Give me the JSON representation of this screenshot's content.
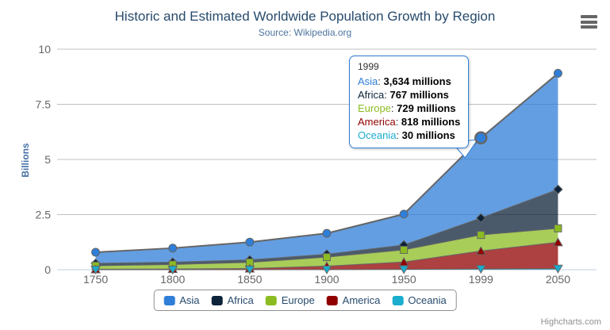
{
  "header": {
    "title": "Historic and Estimated Worldwide Population Growth by Region",
    "subtitle": "Source: Wikipedia.org"
  },
  "chart_data": {
    "type": "area",
    "stacking": "normal",
    "title": "Historic and Estimated Worldwide Population Growth by Region",
    "subtitle": "Source: Wikipedia.org",
    "categories": [
      "1750",
      "1800",
      "1850",
      "1900",
      "1950",
      "1999",
      "2050"
    ],
    "series": [
      {
        "name": "Asia",
        "color": "#2f7ed8",
        "marker": "circle",
        "values": [
          502,
          635,
          809,
          947,
          1402,
          3634,
          5268
        ]
      },
      {
        "name": "Africa",
        "color": "#0d233a",
        "marker": "diamond",
        "values": [
          106,
          107,
          111,
          133,
          221,
          767,
          1766
        ]
      },
      {
        "name": "Europe",
        "color": "#8bbc21",
        "marker": "square",
        "values": [
          163,
          203,
          276,
          408,
          547,
          729,
          628
        ]
      },
      {
        "name": "America",
        "color": "#910000",
        "marker": "triangle",
        "values": [
          18,
          31,
          54,
          156,
          339,
          818,
          1201
        ]
      },
      {
        "name": "Oceania",
        "color": "#1aadce",
        "marker": "triangle-down",
        "values": [
          2,
          2,
          2,
          6,
          13,
          30,
          46
        ]
      }
    ],
    "values_unit": "millions",
    "ylabel": "Billions",
    "xlabel": "",
    "yticks": [
      0,
      2.5,
      5,
      7.5,
      10
    ],
    "ylim": [
      0,
      10
    ],
    "grid": true,
    "legend_position": "bottom",
    "line_color": "#666666",
    "grid_color": "#c0c0c0",
    "axis_line_color": "#c0d0e0",
    "axis_label_color": "#666666",
    "hover": {
      "series": "Asia",
      "category": "1999"
    }
  },
  "tooltip": {
    "header": "1999",
    "separator": ": ",
    "rows": [
      {
        "label": "Asia",
        "value": "3,634 millions",
        "color": "#2f7ed8"
      },
      {
        "label": "Africa",
        "value": "767 millions",
        "color": "#0d233a"
      },
      {
        "label": "Europe",
        "value": "729 millions",
        "color": "#8bbc21"
      },
      {
        "label": "America",
        "value": "818 millions",
        "color": "#910000"
      },
      {
        "label": "Oceania",
        "value": "30 millions",
        "color": "#1aadce"
      }
    ]
  },
  "legend": {
    "items": [
      "Asia",
      "Africa",
      "Europe",
      "America",
      "Oceania"
    ]
  },
  "icons": {
    "export_menu": "hamburger-icon"
  },
  "credits": "Highcharts.com"
}
